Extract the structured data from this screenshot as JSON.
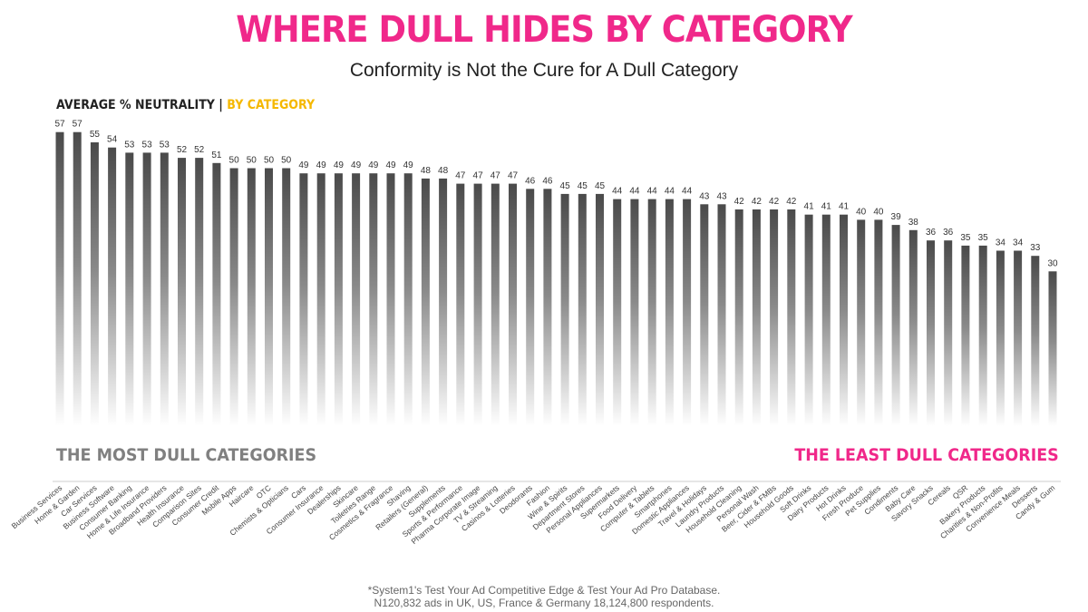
{
  "title": "WHERE DULL HIDES BY CATEGORY",
  "subtitle": "Conformity is Not the Cure for A Dull Category",
  "axis_heading": {
    "main": "AVERAGE % NEUTRALITY",
    "separator": " | ",
    "highlight": "BY CATEGORY"
  },
  "tags": {
    "left": "THE MOST DULL CATEGORIES",
    "right": "THE LEAST DULL CATEGORIES"
  },
  "footnote": {
    "line1": "*System1's Test Your Ad Competitive Edge & Test Your Ad Pro Database.",
    "line2": "N120,832 ads in UK, US, France & Germany 18,124,800 respondents."
  },
  "colors": {
    "title": "#f0288a",
    "highlight": "#f5b800",
    "bar_top": "#4a4a4a",
    "bar_bottom": "#ffffff"
  },
  "chart_data": {
    "type": "bar",
    "title": "WHERE DULL HIDES BY CATEGORY",
    "ylabel": "AVERAGE % NEUTRALITY",
    "xlabel": "",
    "ylim": [
      0,
      60
    ],
    "categories": [
      "Business Services",
      "Home & Garden",
      "Car Services",
      "Business Software",
      "Consumer Banking",
      "Home & Life Insurance",
      "Broadband Providers",
      "Health Insurance",
      "Comparison Sites",
      "Consumer Credit",
      "Mobile Apps",
      "Haircare",
      "OTC",
      "Chemists & Opticians",
      "Cars",
      "Consumer Insurance",
      "Dealerships",
      "Skincare",
      "Toiletries Range",
      "Cosmetics & Fragrance",
      "Shaving",
      "Retailers (General)",
      "Supplements",
      "Sports & Performance",
      "Pharma Corporate Image",
      "TV & Streaming",
      "Casinos & Lotteries",
      "Deodorants",
      "Fashion",
      "Wine & Spirits",
      "Department Stores",
      "Personal Appliances",
      "Supermarkets",
      "Food Delivery",
      "Computer & Tablets",
      "Smartphones",
      "Domestic Appliances",
      "Travel & Holidays",
      "Laundry Products",
      "Household Cleaning",
      "Personal Wash",
      "Beer, Cider & FMBs",
      "Household Goods",
      "Soft Drinks",
      "Dairy Products",
      "Hot Drinks",
      "Fresh Produce",
      "Pet Supplies",
      "Condiments",
      "Baby Care",
      "Savory Snacks",
      "Cereals",
      "QSR",
      "Bakery Products",
      "Charities & Non-Profits",
      "Convenience Meals",
      "Desserts",
      "Candy & Gum"
    ],
    "values": [
      57,
      57,
      55,
      54,
      53,
      53,
      53,
      52,
      52,
      51,
      50,
      50,
      50,
      50,
      49,
      49,
      49,
      49,
      49,
      49,
      49,
      48,
      48,
      47,
      47,
      47,
      47,
      46,
      46,
      45,
      45,
      45,
      44,
      44,
      44,
      44,
      44,
      43,
      43,
      42,
      42,
      42,
      42,
      41,
      41,
      41,
      40,
      40,
      39,
      38,
      36,
      36,
      35,
      35,
      34,
      34,
      33,
      30
    ]
  }
}
